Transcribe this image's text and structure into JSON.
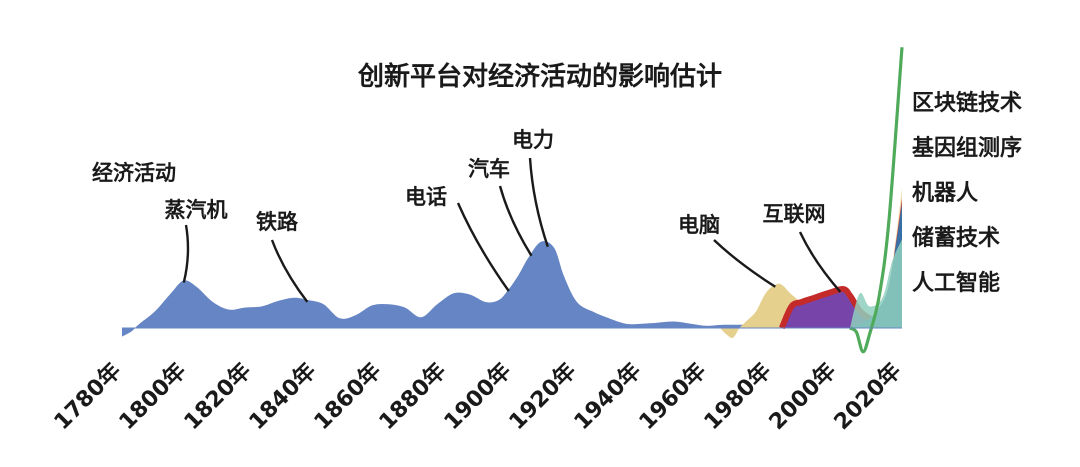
{
  "chart_data": {
    "type": "area",
    "title": "创新平台对经济活动的影响估计",
    "xlabel": "",
    "ylabel": "",
    "xlim": [
      1780,
      2020
    ],
    "x_ticks": [
      "1780年",
      "1800年",
      "1820年",
      "1840年",
      "1860年",
      "1880年",
      "1900年",
      "1920年",
      "1940年",
      "1960年",
      "1980年",
      "2000年",
      "2020年"
    ],
    "colors": {
      "economic": "#6585c4",
      "computer": "#e6d08e",
      "internet_purple": "#7744aa",
      "internet_red": "#c42a2a",
      "ai": "#8fcfbd",
      "storage": "#3a6fa5",
      "robot": "#d34c44",
      "genome": "#f0e2b8",
      "blockchain_line": "#4faa5a"
    },
    "series": [
      {
        "name": "经济活动",
        "x": [
          1780,
          1783,
          1785,
          1790,
          1795,
          1799,
          1803,
          1808,
          1813,
          1818,
          1823,
          1828,
          1833,
          1837,
          1842,
          1847,
          1852,
          1857,
          1862,
          1867,
          1872,
          1877,
          1882,
          1887,
          1892,
          1896,
          1899,
          1902,
          1905,
          1909,
          1913,
          1916,
          1920,
          1925,
          1929,
          1935,
          1940,
          1945,
          1950,
          1955,
          1960,
          1965,
          1970,
          1975,
          1980,
          1985,
          1990,
          1995,
          2000,
          2005,
          2010,
          2015
        ],
        "values": [
          -0.8,
          -0.3,
          0.3,
          1.5,
          3.2,
          4.4,
          3.8,
          2.4,
          1.7,
          1.9,
          2.0,
          2.5,
          2.8,
          2.6,
          2.2,
          0.9,
          1.2,
          2.1,
          2.2,
          1.9,
          1.0,
          2.2,
          3.2,
          3.1,
          2.4,
          2.6,
          3.6,
          4.9,
          6.5,
          8.0,
          7.4,
          4.8,
          2.4,
          1.5,
          1.0,
          0.4,
          0.4,
          0.5,
          0.6,
          0.4,
          0.2,
          0.3,
          0.3,
          0.3,
          0.4,
          0.2,
          0.15,
          0.1,
          0.1,
          0.05,
          0,
          0
        ]
      },
      {
        "name": "电脑",
        "x": [
          1964,
          1966,
          1968,
          1970,
          1972,
          1975,
          1978,
          1981,
          1983,
          1986,
          1990,
          1994,
          1998,
          2002,
          2005,
          2010,
          2015
        ],
        "values": [
          0,
          -0.6,
          -0.9,
          0,
          0.6,
          1.5,
          3.2,
          4.0,
          4.0,
          3.1,
          2.2,
          1.7,
          1.4,
          1.1,
          0.8,
          0.4,
          0
        ]
      },
      {
        "name": "互联网",
        "x": [
          1983,
          1986,
          1989,
          1993,
          1998,
          2002,
          2004,
          2007,
          2010,
          2013,
          2016
        ],
        "values": [
          0,
          2.0,
          2.4,
          2.8,
          3.3,
          3.6,
          3.0,
          1.6,
          0.9,
          0.5,
          0.3
        ]
      },
      {
        "name": "人工智能",
        "x": [
          2004,
          2007,
          2010,
          2014,
          2017,
          2020
        ],
        "values": [
          0,
          3.2,
          2.0,
          2.8,
          6.2,
          8.2
        ]
      },
      {
        "name": "储蓄技术",
        "x": [
          2004,
          2008,
          2012,
          2016,
          2020
        ],
        "values": [
          0,
          0.5,
          1.5,
          4.0,
          11.5
        ]
      },
      {
        "name": "机器人",
        "x": [
          2004,
          2008,
          2012,
          2016,
          2020
        ],
        "values": [
          0,
          0.3,
          1.2,
          4.0,
          12.0
        ]
      },
      {
        "name": "基因组测序",
        "x": [
          2004,
          2008,
          2012,
          2016,
          2020
        ],
        "values": [
          0,
          0.2,
          1.0,
          4.0,
          13.0
        ]
      },
      {
        "name": "区块链技术",
        "x": [
          2004,
          2006,
          2008,
          2010,
          2013,
          2016,
          2020
        ],
        "values": [
          0,
          -0.4,
          -2.2,
          -0.6,
          3.0,
          10.0,
          26.0
        ]
      }
    ],
    "annotations": [
      {
        "text": "经济活动",
        "x": 1780
      },
      {
        "text": "蒸汽机",
        "x": 1799
      },
      {
        "text": "铁路",
        "x": 1837
      },
      {
        "text": "电话",
        "x": 1899
      },
      {
        "text": "汽车",
        "x": 1906
      },
      {
        "text": "电力",
        "x": 1911
      },
      {
        "text": "电脑",
        "x": 1981
      },
      {
        "text": "互联网",
        "x": 2001
      }
    ],
    "legend": [
      "区块链技术",
      "基因组测序",
      "机器人",
      "储蓄技术",
      "人工智能"
    ],
    "legend_position": "right",
    "grid": false
  }
}
